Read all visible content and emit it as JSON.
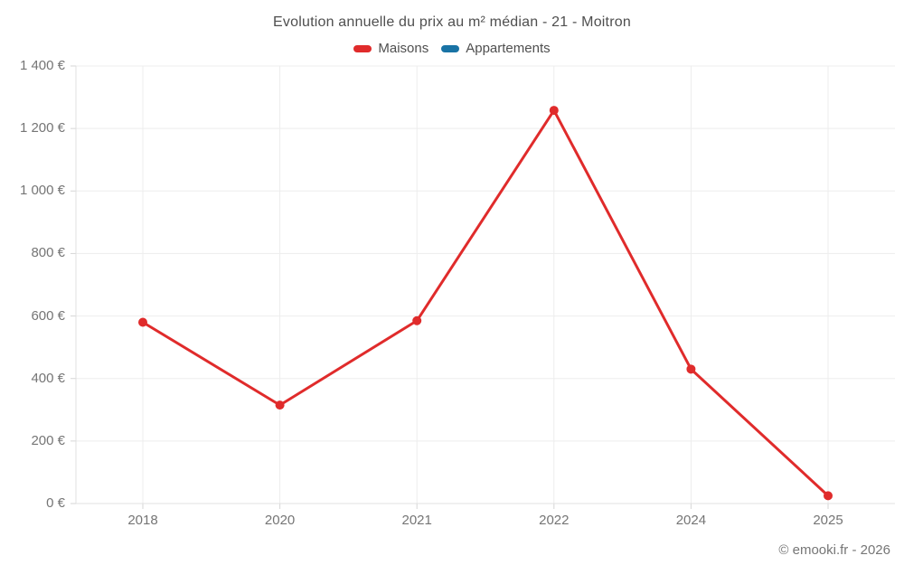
{
  "header": {
    "title": "Evolution annuelle du prix au m² médian - 21 - Moitron"
  },
  "legend": {
    "items": [
      {
        "label": "Maisons",
        "color": "#e02b2b"
      },
      {
        "label": "Appartements",
        "color": "#1973a5"
      }
    ]
  },
  "footer": {
    "credit": "© emooki.fr - 2026"
  },
  "colors": {
    "grid": "#ededed",
    "axis": "#e0e0e0",
    "tick": "#d6d6d6",
    "title_text": "#4f4f4f",
    "tick_text": "#757575"
  },
  "chart_data": {
    "type": "line",
    "title": "Evolution annuelle du prix au m² médian - 21 - Moitron",
    "xlabel": "",
    "ylabel": "",
    "categories": [
      "2018",
      "2020",
      "2021",
      "2022",
      "2024",
      "2025"
    ],
    "series": [
      {
        "name": "Maisons",
        "color": "#e02b2b",
        "values": [
          580,
          315,
          585,
          1258,
          430,
          25
        ]
      },
      {
        "name": "Appartements",
        "color": "#1973a5",
        "values": []
      }
    ],
    "ylim": [
      0,
      1400
    ],
    "yticks": [
      0,
      200,
      400,
      600,
      800,
      1000,
      1200,
      1400
    ],
    "ytick_labels": [
      "0 €",
      "200 €",
      "400 €",
      "600 €",
      "800 €",
      "1 000 €",
      "1 200 €",
      "1 400 €"
    ],
    "grid": true,
    "legend_position": "top",
    "marker_radius": 5,
    "line_width": 3
  }
}
